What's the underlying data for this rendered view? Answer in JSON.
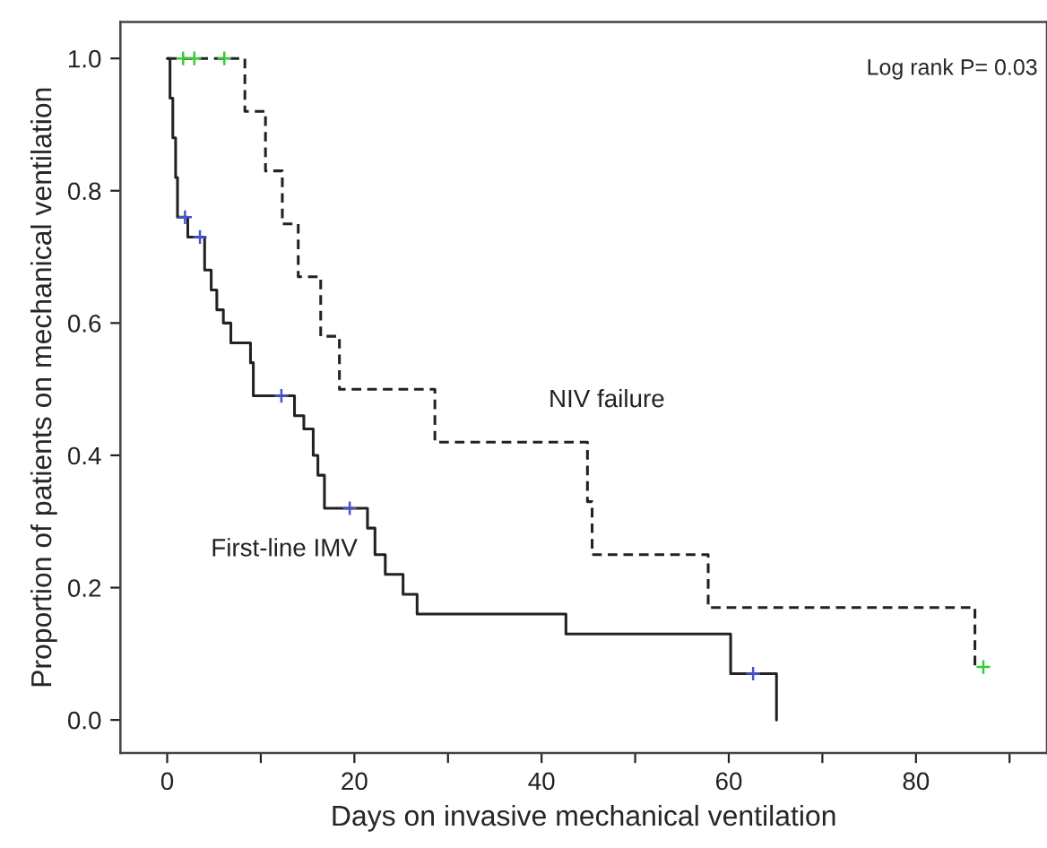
{
  "chart_data": {
    "type": "step",
    "xlabel": "Days on invasive mechanical ventilation",
    "ylabel": "Proportion of patients on mechanical ventilation",
    "annotations": [
      "Log rank P= 0.03"
    ],
    "xlim": [
      -5,
      94
    ],
    "ylim": [
      -0.05,
      1.055
    ],
    "xticks": [
      0,
      {
        "value": 10,
        "label": null
      },
      20,
      {
        "value": 30,
        "label": null
      },
      40,
      {
        "value": 50,
        "label": null
      },
      60,
      {
        "value": 70,
        "label": null
      },
      80,
      {
        "value": 90,
        "label": null
      }
    ],
    "yticks": [
      {
        "value": 0,
        "label": "0.0"
      },
      {
        "value": 0.2,
        "label": "0.2"
      },
      {
        "value": 0.4,
        "label": "0.4"
      },
      {
        "value": 0.6,
        "label": "0.6"
      },
      {
        "value": 0.8,
        "label": "0.8"
      },
      {
        "value": 1,
        "label": "1.0"
      }
    ],
    "grid": false,
    "legend": false,
    "series": [
      {
        "name": "NIV failure",
        "type": "step",
        "color": "#222222",
        "line_style": "dashed",
        "marker": "none",
        "x": [
          0,
          8.3,
          10.5,
          12.3,
          14.0,
          16.4,
          18.4,
          28.6,
          44.9,
          45.4,
          57.8,
          86.3
        ],
        "values": [
          1.0,
          0.92,
          0.83,
          0.75,
          0.67,
          0.58,
          0.5,
          0.42,
          0.33,
          0.25,
          0.17,
          0.08
        ]
      },
      {
        "name": "First-line IMV",
        "type": "step",
        "color": "#222222",
        "line_style": "solid",
        "marker": "none",
        "x": [
          0,
          0.3,
          0.6,
          0.9,
          1.1,
          2.2,
          4.0,
          4.7,
          5.3,
          6.0,
          6.8,
          8.9,
          9.2,
          13.6,
          14.6,
          15.6,
          16.1,
          16.8,
          21.4,
          22.2,
          23.3,
          25.2,
          26.7,
          42.6,
          60.2,
          65.1
        ],
        "values": [
          1.0,
          0.94,
          0.88,
          0.82,
          0.76,
          0.73,
          0.68,
          0.65,
          0.62,
          0.6,
          0.57,
          0.54,
          0.49,
          0.46,
          0.44,
          0.4,
          0.37,
          0.32,
          0.29,
          0.25,
          0.22,
          0.19,
          0.16,
          0.13,
          0.07,
          0.0
        ]
      },
      {
        "type": "scatter",
        "color": "#33cc33",
        "marker": "cross",
        "x": [
          1.7,
          2.9,
          6.1,
          87.2
        ],
        "values": [
          1.0,
          1.0,
          1.0,
          0.08
        ]
      },
      {
        "type": "scatter",
        "color": "#4455cc",
        "marker": "cross",
        "x": [
          1.9,
          3.5,
          12.2,
          19.5,
          62.6
        ],
        "values": [
          0.76,
          0.73,
          0.49,
          0.32,
          0.07
        ]
      }
    ]
  }
}
